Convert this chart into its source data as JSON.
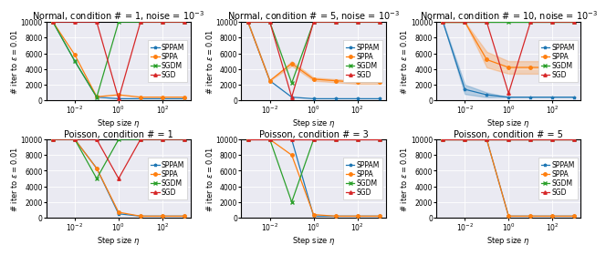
{
  "x_values": [
    0.001,
    0.01,
    0.1,
    1.0,
    10.0,
    100.0,
    1000.0
  ],
  "subplots": [
    {
      "title": "Normal, condition # = 1, noise = $10^{-3}$",
      "SPPAM": [
        10000,
        5000,
        400,
        200,
        200,
        200,
        200
      ],
      "SPPAM_std": [
        0,
        0,
        0,
        0,
        0,
        0,
        0
      ],
      "SPPA": [
        10000,
        5800,
        450,
        700,
        400,
        400,
        400
      ],
      "SPPA_std": [
        0,
        0,
        0,
        0,
        0,
        0,
        0
      ],
      "SGDM": [
        10000,
        5000,
        400,
        10000,
        10000,
        10000,
        10000
      ],
      "SGDM_std": [
        0,
        0,
        0,
        0,
        0,
        0,
        0
      ],
      "SGD": [
        10000,
        10000,
        10000,
        200,
        10000,
        10000,
        10000
      ],
      "SGD_std": [
        0,
        0,
        0,
        0,
        0,
        0,
        0
      ]
    },
    {
      "title": "Normal, condition # = 5, noise = $10^{-3}$",
      "SPPAM": [
        10000,
        2500,
        400,
        200,
        200,
        200,
        200
      ],
      "SPPAM_std": [
        0,
        0,
        0,
        0,
        0,
        0,
        0
      ],
      "SPPA": [
        10000,
        2500,
        4700,
        2700,
        2500,
        2300,
        2300
      ],
      "SPPA_std": [
        0,
        0,
        300,
        200,
        200,
        200,
        200
      ],
      "SGDM": [
        10000,
        10000,
        2200,
        10000,
        10000,
        10000,
        10000
      ],
      "SGDM_std": [
        0,
        0,
        0,
        0,
        0,
        0,
        0
      ],
      "SGD": [
        10000,
        10000,
        400,
        10000,
        10000,
        10000,
        10000
      ],
      "SGD_std": [
        0,
        0,
        0,
        0,
        0,
        0,
        0
      ]
    },
    {
      "title": "Normal, condition # = 10, noise = $10^{-3}$",
      "SPPAM": [
        10000,
        1400,
        700,
        400,
        400,
        400,
        400
      ],
      "SPPAM_std": [
        0,
        600,
        300,
        0,
        0,
        0,
        0
      ],
      "SPPA": [
        10000,
        10000,
        5200,
        4200,
        4200,
        4200,
        4200
      ],
      "SPPA_std": [
        0,
        0,
        1000,
        800,
        800,
        800,
        800
      ],
      "SGDM": [
        10000,
        10000,
        10000,
        10000,
        10000,
        10000,
        10000
      ],
      "SGDM_std": [
        0,
        0,
        0,
        0,
        0,
        0,
        0
      ],
      "SGD": [
        10000,
        10000,
        10000,
        900,
        10000,
        10000,
        10000
      ],
      "SGD_std": [
        0,
        0,
        0,
        0,
        0,
        0,
        0
      ]
    },
    {
      "title": "Poisson, condition # = 1",
      "SPPAM": [
        10000,
        10000,
        6300,
        500,
        200,
        200,
        200
      ],
      "SPPAM_std": [
        0,
        0,
        0,
        0,
        0,
        0,
        0
      ],
      "SPPA": [
        10000,
        10000,
        6300,
        700,
        200,
        200,
        200
      ],
      "SPPA_std": [
        0,
        0,
        0,
        0,
        0,
        0,
        0
      ],
      "SGDM": [
        10000,
        10000,
        5000,
        10000,
        10000,
        10000,
        10000
      ],
      "SGDM_std": [
        0,
        0,
        0,
        0,
        0,
        0,
        0
      ],
      "SGD": [
        10000,
        10000,
        10000,
        5000,
        10000,
        10000,
        10000
      ],
      "SGD_std": [
        0,
        0,
        0,
        0,
        0,
        0,
        0
      ]
    },
    {
      "title": "Poisson, condition # = 3",
      "SPPAM": [
        10000,
        10000,
        10000,
        200,
        200,
        200,
        200
      ],
      "SPPAM_std": [
        0,
        0,
        0,
        0,
        0,
        0,
        0
      ],
      "SPPA": [
        10000,
        10000,
        8000,
        400,
        200,
        200,
        200
      ],
      "SPPA_std": [
        0,
        0,
        0,
        0,
        0,
        0,
        0
      ],
      "SGDM": [
        10000,
        10000,
        2000,
        10000,
        10000,
        10000,
        10000
      ],
      "SGDM_std": [
        0,
        0,
        0,
        0,
        0,
        0,
        0
      ],
      "SGD": [
        10000,
        10000,
        10000,
        10000,
        10000,
        10000,
        10000
      ],
      "SGD_std": [
        0,
        0,
        0,
        0,
        0,
        0,
        0
      ]
    },
    {
      "title": "Poisson, condition # = 5",
      "SPPAM": [
        10000,
        10000,
        10000,
        200,
        200,
        200,
        200
      ],
      "SPPAM_std": [
        0,
        0,
        0,
        0,
        0,
        0,
        0
      ],
      "SPPA": [
        10000,
        10000,
        10000,
        200,
        200,
        200,
        200
      ],
      "SPPA_std": [
        0,
        0,
        0,
        0,
        0,
        0,
        0
      ],
      "SGDM": [
        10000,
        10000,
        10000,
        10000,
        10000,
        10000,
        10000
      ],
      "SGDM_std": [
        0,
        0,
        0,
        0,
        0,
        0,
        0
      ],
      "SGD": [
        10000,
        10000,
        10000,
        10000,
        10000,
        10000,
        10000
      ],
      "SGD_std": [
        0,
        0,
        0,
        0,
        0,
        0,
        0
      ]
    }
  ],
  "colors": {
    "SPPAM": "#1f77b4",
    "SPPA": "#ff7f0e",
    "SGDM": "#2ca02c",
    "SGD": "#d62728"
  },
  "markers": {
    "SPPAM": "*",
    "SPPA": "o",
    "SGDM": "x",
    "SGD": "^"
  },
  "xlim": [
    0.0005,
    2000.0
  ],
  "ylim": [
    0,
    10000
  ],
  "yticks": [
    0,
    2000,
    4000,
    6000,
    8000,
    10000
  ],
  "xlabel": "Step size $\\eta$",
  "ylabel": "# iter to $\\varepsilon = 0.01$",
  "legend_labels": [
    "SPPAM",
    "SPPA",
    "SGDM",
    "SGD"
  ],
  "title_fontsize": 7,
  "label_fontsize": 6,
  "tick_fontsize": 5.5,
  "legend_fontsize": 5.5,
  "background_color": "#eaeaf2"
}
